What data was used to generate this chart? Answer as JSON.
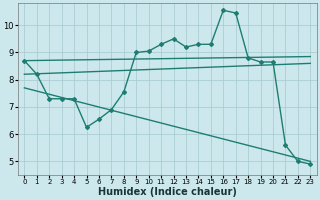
{
  "xlabel": "Humidex (Indice chaleur)",
  "ylabel": "",
  "background_color": "#cce8ec",
  "grid_color": "#aacdd4",
  "line_color": "#1e7d72",
  "xlim": [
    -0.5,
    23.5
  ],
  "ylim": [
    4.5,
    10.8
  ],
  "xticks": [
    0,
    1,
    2,
    3,
    4,
    5,
    6,
    7,
    8,
    9,
    10,
    11,
    12,
    13,
    14,
    15,
    16,
    17,
    18,
    19,
    20,
    21,
    22,
    23
  ],
  "yticks": [
    5,
    6,
    7,
    8,
    9,
    10
  ],
  "series1_x": [
    0,
    1,
    2,
    3,
    4,
    5,
    6,
    7,
    8,
    9,
    10,
    11,
    12,
    13,
    14,
    15,
    16,
    17,
    18,
    19,
    20,
    21,
    22,
    23
  ],
  "series1_y": [
    8.7,
    8.2,
    7.3,
    7.3,
    7.3,
    6.25,
    6.55,
    6.9,
    7.55,
    9.0,
    9.05,
    9.3,
    9.5,
    9.2,
    9.3,
    9.3,
    10.55,
    10.45,
    8.8,
    8.65,
    8.65,
    5.6,
    5.0,
    4.9
  ],
  "series2_x": [
    0,
    23
  ],
  "series2_y": [
    8.7,
    8.85
  ],
  "series3_x": [
    0,
    23
  ],
  "series3_y": [
    8.2,
    8.6
  ],
  "series4_x": [
    0,
    23
  ],
  "series4_y": [
    7.7,
    5.0
  ],
  "xlabel_fontsize": 7,
  "tick_fontsize": 5,
  "figsize": [
    3.2,
    2.0
  ],
  "dpi": 100
}
